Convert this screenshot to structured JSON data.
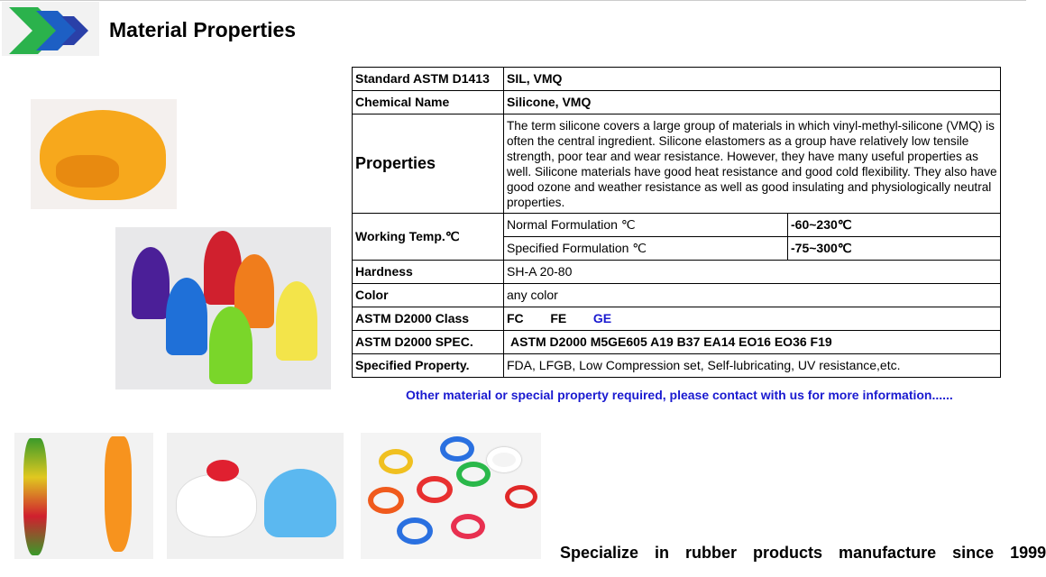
{
  "header": {
    "title": "Material Properties",
    "logo": "green-blue-chevron-logo"
  },
  "table": {
    "rows": [
      {
        "label": "Standard ASTM D1413",
        "value": "SIL, VMQ"
      },
      {
        "label": "Chemical Name",
        "value": "Silicone, VMQ"
      },
      {
        "label": "Properties",
        "value": "The term silicone covers a large group of materials in which vinyl-methyl-silicone (VMQ) is often the central ingredient. Silicone elastomers as a group have relatively low tensile strength, poor tear and wear resistance. However, they have many useful properties as well. Silicone materials have good heat resistance and good cold flexibility. They also have good ozone and weather resistance as well as good insulating and physiologically neutral properties."
      },
      {
        "label": "Working Temp.℃",
        "sub": [
          {
            "name": "Normal Formulation ℃",
            "value": "-60~230℃"
          },
          {
            "name": "Specified Formulation ℃",
            "value": "-75~300℃"
          }
        ]
      },
      {
        "label": "Hardness",
        "value": "SH-A  20-80"
      },
      {
        "label": "Color",
        "value": "any color"
      },
      {
        "label": "ASTM D2000 Class",
        "classes": [
          "FC",
          "FE",
          "GE"
        ]
      },
      {
        "label": "ASTM D2000  SPEC.",
        "value": "ASTM D2000 M5GE605 A19 B37 EA14 EO16 EO36 F19"
      },
      {
        "label": "Specified Property.",
        "value": "FDA, LFGB, Low Compression set, Self-lubricating, UV resistance,etc."
      }
    ]
  },
  "note": "Other material or special property required, please contact with us for more information......",
  "slogan": "Specialize  in  rubber  products  manufacture  since  1999",
  "colors": {
    "note": "#1a1ad0",
    "ge_class": "#1a1ad0"
  }
}
